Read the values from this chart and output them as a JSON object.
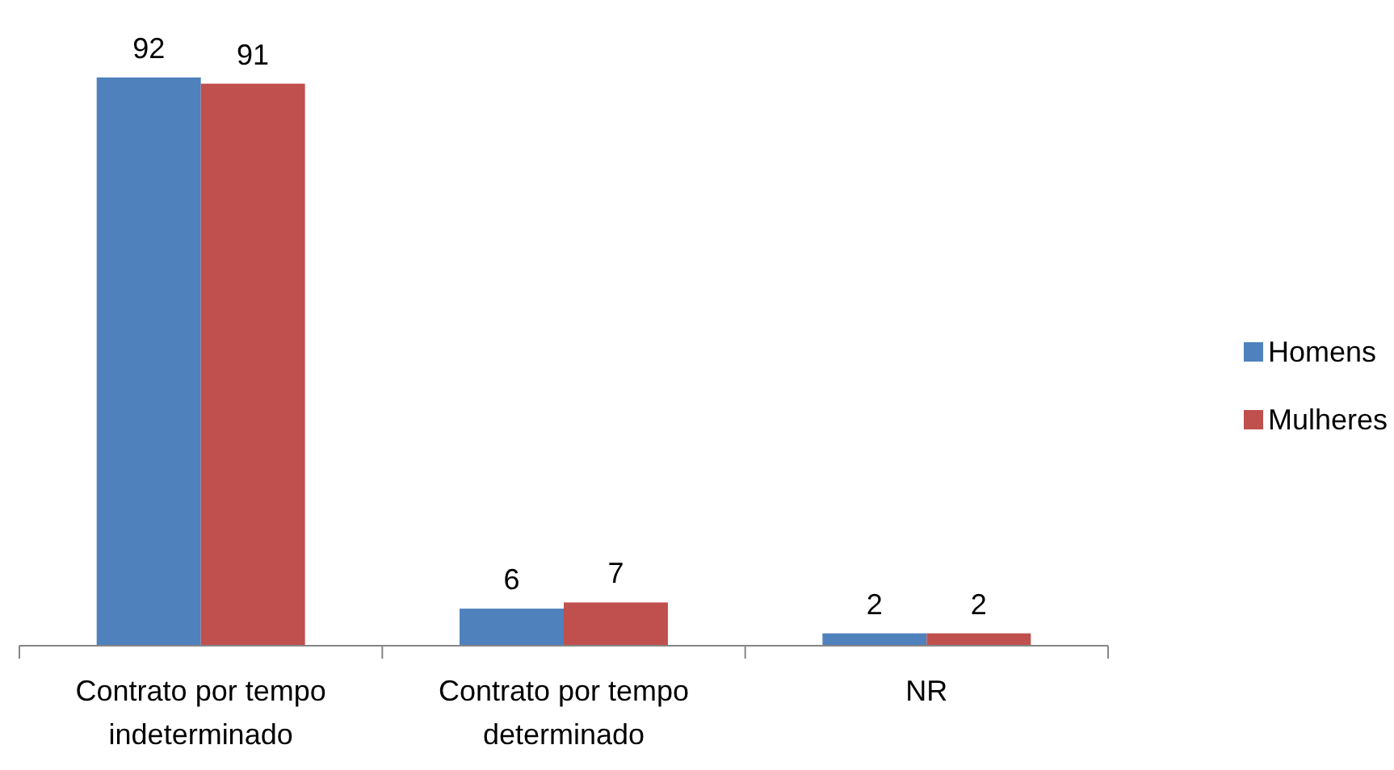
{
  "chart_data": {
    "type": "bar",
    "categories": [
      "Contrato por tempo indeterminado",
      "Contrato por tempo determinado",
      "NR"
    ],
    "series": [
      {
        "name": "Homens",
        "color": "#4f81bd",
        "values": [
          92,
          6,
          2
        ]
      },
      {
        "name": "Mulheres",
        "color": "#c0504d",
        "values": [
          91,
          7,
          2
        ]
      }
    ],
    "data_labels": true,
    "legend": "right"
  }
}
